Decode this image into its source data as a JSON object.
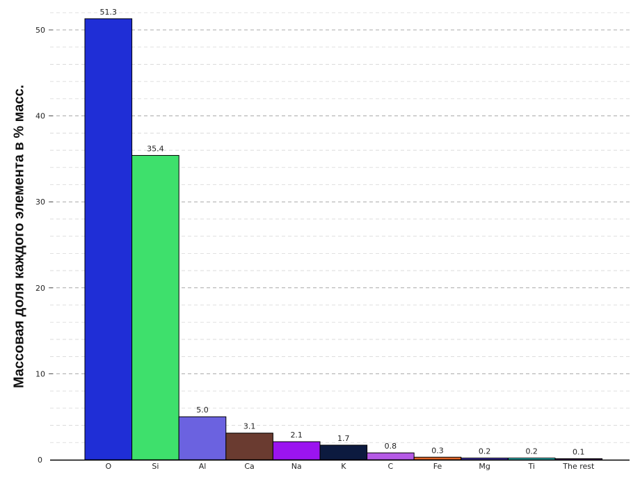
{
  "chart_data": {
    "type": "bar",
    "title": "",
    "xlabel": "",
    "ylabel": "Массовая доля каждого элемента в % масс.",
    "ylim": [
      0,
      52
    ],
    "yticks": [
      0,
      10,
      20,
      30,
      40,
      50
    ],
    "grid": true,
    "categories": [
      "O",
      "Si",
      "Al",
      "Ca",
      "Na",
      "K",
      "C",
      "Fe",
      "Mg",
      "Ti",
      "The rest"
    ],
    "values": [
      51.3,
      35.4,
      5.0,
      3.1,
      2.1,
      1.7,
      0.8,
      0.3,
      0.2,
      0.2,
      0.1
    ],
    "value_labels": [
      "51.3",
      "35.4",
      "5.0",
      "3.1",
      "2.1",
      "1.7",
      "0.8",
      "0.3",
      "0.2",
      "0.2",
      "0.1"
    ],
    "colors": [
      "#1f2ed6",
      "#3ee06c",
      "#6b62e0",
      "#6a3b30",
      "#9b14f0",
      "#0c1a3f",
      "#b55ae6",
      "#e0662a",
      "#4a3cb8",
      "#35c9c9",
      "#6a3b8a"
    ]
  }
}
